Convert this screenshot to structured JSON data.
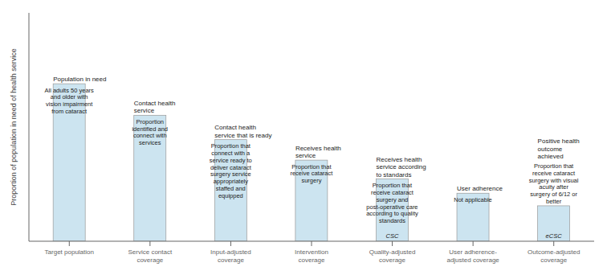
{
  "chart_data": {
    "type": "bar",
    "categories": [
      "Target population",
      "Service contact\ncoverage",
      "Input-adjusted\ncoverage",
      "Intervention\ncoverage",
      "Quality-adjusted\ncoverage",
      "User adherence-\nadjusted coverage",
      "Outcome-adjusted\ncoverage"
    ],
    "values": [
      1.0,
      0.8,
      0.645,
      0.515,
      0.395,
      0.305,
      0.225
    ],
    "color": "#cce4f0",
    "ylabel": "Proportion of population in need of health service",
    "ylim": [
      0,
      1.45
    ],
    "tick_labels": "x",
    "grid": false,
    "top_labels": [
      "Population in need",
      "Contact health\nservice",
      "Contact health\nservice that is ready",
      "Receives health\nservice",
      "Receives health\nservice according\nto standards",
      "User adherence",
      "Positive health\noutcome\nachieved"
    ],
    "inside_labels": [
      "All adults 50 years\nand older with\nvision impairment\nfrom cataract",
      "Proportion\nidentified and\nconnect with\nservices",
      "Proportion that\nconnect with a\nservice ready to\ndeliver cataract\nsurgery service\nappropriately\nstaffed and\nequipped",
      "Proportion that\nreceive cataract\nsurgery",
      "Proportion that\nreceive cataract\nsurgery and\npost-operative care\naccording to quality\nstandards",
      "Not applicable",
      "Proportion that\nreceive cataract\nsurgery with visual\nacuity after\nsurgery of 6/12 or\nbetter"
    ],
    "bottom_labels": [
      null,
      null,
      null,
      null,
      "CSC",
      null,
      "eCSC"
    ]
  }
}
